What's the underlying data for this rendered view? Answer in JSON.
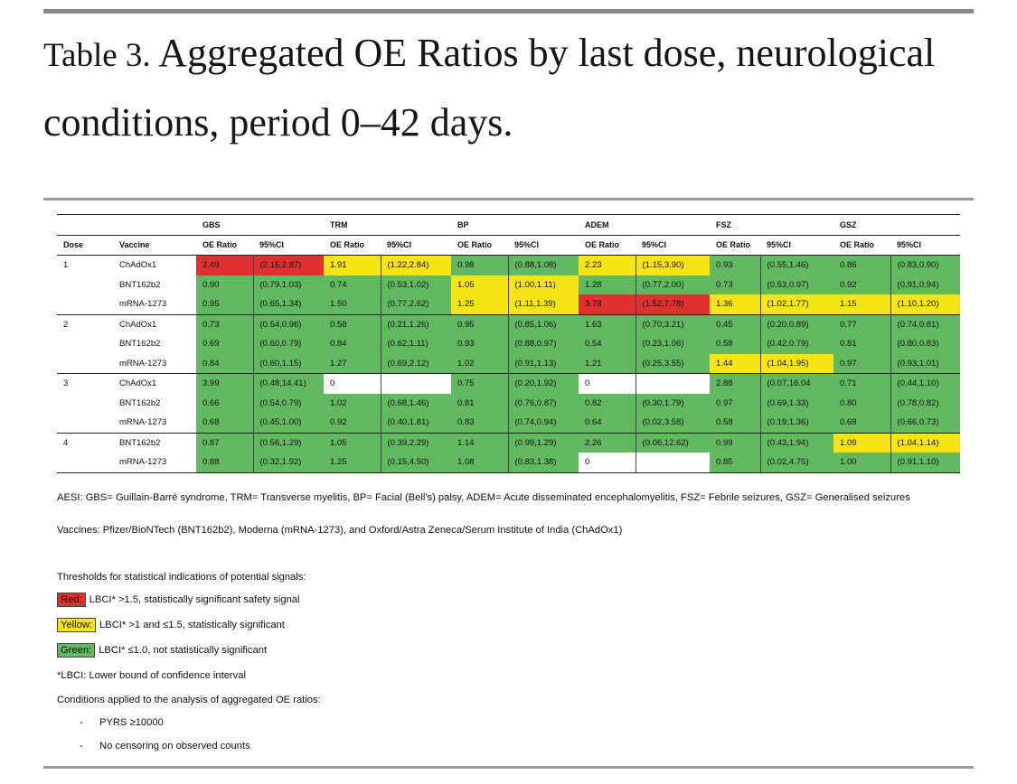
{
  "title": {
    "label": "Table 3.",
    "text": "Aggregated OE Ratios by last dose, neurological conditions, period 0–42 days."
  },
  "table": {
    "aesi_headers": [
      "GBS",
      "TRM",
      "BP",
      "ADEM",
      "FSZ",
      "GSZ"
    ],
    "col_headers": [
      "Dose",
      "Vaccine",
      "OE Ratio",
      "95%CI",
      "OE Ratio",
      "95%CI",
      "OE Ratio",
      "95%CI",
      "OE Ratio",
      "95%CI",
      "OE Ratio",
      "95%CI",
      "OE Ratio",
      "95%CI"
    ],
    "rows": [
      {
        "dose": "1",
        "vaccine": "ChAdOx1",
        "cells": [
          [
            "2.49",
            "(2.15,2.87)",
            "r"
          ],
          [
            "1.91",
            "(1.22,2.84)",
            "y"
          ],
          [
            "0.98",
            "(0.88,1.08)",
            "g"
          ],
          [
            "2.23",
            "(1.15,3.90)",
            "y"
          ],
          [
            "0.93",
            "(0.55,1.46)",
            "g"
          ],
          [
            "0.86",
            "(0.83,0.90)",
            "g"
          ]
        ]
      },
      {
        "dose": "",
        "vaccine": "BNT162b2",
        "cells": [
          [
            "0.90",
            "(0.79,1.03)",
            "g"
          ],
          [
            "0.74",
            "(0.53,1.02)",
            "g"
          ],
          [
            "1.05",
            "(1.00,1.11)",
            "y"
          ],
          [
            "1.28",
            "(0.77,2.00)",
            "g"
          ],
          [
            "0.73",
            "(0.53,0.97)",
            "g"
          ],
          [
            "0.92",
            "(0.91,0.94)",
            "g"
          ]
        ]
      },
      {
        "dose": "",
        "vaccine": "mRNA-1273",
        "cells": [
          [
            "0.95",
            "(0.65,1.34)",
            "g"
          ],
          [
            "1.50",
            "(0.77,2.62)",
            "g"
          ],
          [
            "1.25",
            "(1.11,1.39)",
            "y"
          ],
          [
            "3.78",
            "(1.52,7.78)",
            "r"
          ],
          [
            "1.36",
            "(1.02,1.77)",
            "y"
          ],
          [
            "1.15",
            "(1.10,1.20)",
            "y"
          ]
        ]
      },
      {
        "dose": "2",
        "vaccine": "ChAdOx1",
        "cells": [
          [
            "0.73",
            "(0.54,0.96)",
            "g"
          ],
          [
            "0.58",
            "(0.21,1.26)",
            "g"
          ],
          [
            "0.95",
            "(0.85,1.06)",
            "g"
          ],
          [
            "1.63",
            "(0.70,3.21)",
            "g"
          ],
          [
            "0.45",
            "(0.20,0.89)",
            "g"
          ],
          [
            "0.77",
            "(0.74,0.81)",
            "g"
          ]
        ]
      },
      {
        "dose": "",
        "vaccine": "BNT162b2",
        "cells": [
          [
            "0.69",
            "(0.60,0.79)",
            "g"
          ],
          [
            "0.84",
            "(0.62,1.11)",
            "g"
          ],
          [
            "0.93",
            "(0.88,0.97)",
            "g"
          ],
          [
            "0.54",
            "(0.23,1.06)",
            "g"
          ],
          [
            "0.58",
            "(0.42,0.79)",
            "g"
          ],
          [
            "0.81",
            "(0.80,0.83)",
            "g"
          ]
        ]
      },
      {
        "dose": "",
        "vaccine": "mRNA-1273",
        "cells": [
          [
            "0.84",
            "(0.60,1.15)",
            "g"
          ],
          [
            "1.27",
            "(0.69,2.12)",
            "g"
          ],
          [
            "1.02",
            "(0.91,1.13)",
            "g"
          ],
          [
            "1.21",
            "(0.25,3.55)",
            "g"
          ],
          [
            "1.44",
            "(1.04,1.95)",
            "y"
          ],
          [
            "0.97",
            "(0.93,1.01)",
            "g"
          ]
        ]
      },
      {
        "dose": "3",
        "vaccine": "ChAdOx1",
        "cells": [
          [
            "3.99",
            "(0.48,14.41)",
            "g"
          ],
          [
            "0",
            "",
            "w"
          ],
          [
            "0.75",
            "(0.20,1.92)",
            "g"
          ],
          [
            "0",
            "",
            "w"
          ],
          [
            "2.88",
            "(0.07,16.04",
            "g"
          ],
          [
            "0.71",
            "(0.44,1.10)",
            "g"
          ]
        ]
      },
      {
        "dose": "",
        "vaccine": "BNT162b2",
        "cells": [
          [
            "0.66",
            "(0.54,0.79)",
            "g"
          ],
          [
            "1.02",
            "(0.68,1.46)",
            "g"
          ],
          [
            "0.81",
            "(0.76,0.87)",
            "g"
          ],
          [
            "0.82",
            "(0.30,1.79)",
            "g"
          ],
          [
            "0.97",
            "(0.69,1.33)",
            "g"
          ],
          [
            "0.80",
            "(0.78,0.82)",
            "g"
          ]
        ]
      },
      {
        "dose": "",
        "vaccine": "mRNA-1273",
        "cells": [
          [
            "0.68",
            "(0.45,1.00)",
            "g"
          ],
          [
            "0.92",
            "(0.40,1.81)",
            "g"
          ],
          [
            "0.83",
            "(0.74,0.94)",
            "g"
          ],
          [
            "0.64",
            "(0.02,3.58)",
            "g"
          ],
          [
            "0.58",
            "(0.19,1.36)",
            "g"
          ],
          [
            "0.69",
            "(0.66,0.73)",
            "g"
          ]
        ]
      },
      {
        "dose": "4",
        "vaccine": "BNT162b2",
        "cells": [
          [
            "0.87",
            "(0.56,1.29)",
            "g"
          ],
          [
            "1.05",
            "(0.39,2.29)",
            "g"
          ],
          [
            "1.14",
            "(0.99,1.29)",
            "g"
          ],
          [
            "2.26",
            "(0.06,12.62)",
            "g"
          ],
          [
            "0.99",
            "(0.43,1.94)",
            "g"
          ],
          [
            "1.09",
            "(1.04,1.14)",
            "y"
          ]
        ]
      },
      {
        "dose": "",
        "vaccine": "mRNA-1273",
        "cells": [
          [
            "0.88",
            "(0.32,1.92)",
            "g"
          ],
          [
            "1.25",
            "(0.15,4.50)",
            "g"
          ],
          [
            "1.08",
            "(0.83,1.38)",
            "g"
          ],
          [
            "0",
            "",
            "w"
          ],
          [
            "0.85",
            "(0.02,4.75)",
            "g"
          ],
          [
            "1.00",
            "(0.91,1.10)",
            "g"
          ]
        ]
      }
    ]
  },
  "notes": {
    "aesi": "AESI: GBS= Guillain-Barré syndrome, TRM= Transverse myelitis, BP= Facial (Bell's) palsy, ADEM= Acute disseminated encephalomyelitis, FSZ= Febrile seizures, GSZ= Generalised seizures",
    "vaccines": "Vaccines: Pfizer/BioNTech (BNT162b2), Moderna (mRNA-1273), and Oxford/Astra Zeneca/Serum Institute of India (ChAdOx1)",
    "thresholds_heading": "Thresholds for statistical indications of potential signals:",
    "legend": [
      {
        "key": "Red:",
        "text": "LBCI* >1.5, statistically significant safety signal"
      },
      {
        "key": "Yellow:",
        "text": "LBCI* >1 and ≤1.5, statistically significant"
      },
      {
        "key": "Green:",
        "text": "LBCI* ≤1.0, not statistically significant"
      }
    ],
    "lbci": "*LBCI: Lower bound of confidence interval",
    "conditions_heading": "Conditions applied to the analysis of aggregated OE ratios:",
    "conditions": [
      "PYRS ≥10000",
      "No censoring on observed counts"
    ]
  }
}
